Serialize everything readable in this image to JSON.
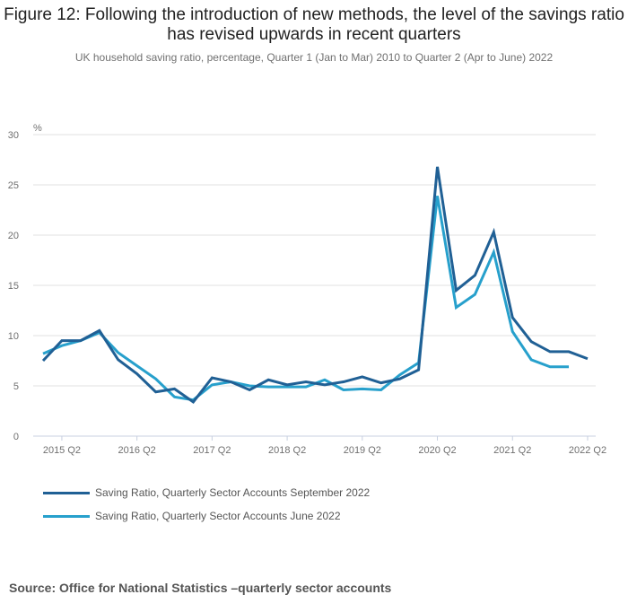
{
  "chart_data": {
    "type": "line",
    "title": "Figure 12: Following the introduction of new methods, the level of the savings ratio has revised upwards in recent quarters",
    "subtitle": "UK household saving ratio, percentage, Quarter 1 (Jan to Mar) 2010 to Quarter 2 (Apr to June) 2022",
    "ylabel": "%",
    "ylim": [
      0,
      30
    ],
    "yticks": [
      "0",
      "5",
      "10",
      "15",
      "20",
      "25",
      "30"
    ],
    "xticks": [
      "2015 Q2",
      "2016 Q2",
      "2017 Q2",
      "2018 Q2",
      "2019 Q2",
      "2020 Q2",
      "2021 Q2",
      "2022 Q2"
    ],
    "x": [
      "2015 Q1",
      "2015 Q2",
      "2015 Q3",
      "2015 Q4",
      "2016 Q1",
      "2016 Q2",
      "2016 Q3",
      "2016 Q4",
      "2017 Q1",
      "2017 Q2",
      "2017 Q3",
      "2017 Q4",
      "2018 Q1",
      "2018 Q2",
      "2018 Q3",
      "2018 Q4",
      "2019 Q1",
      "2019 Q2",
      "2019 Q3",
      "2019 Q4",
      "2020 Q1",
      "2020 Q2",
      "2020 Q3",
      "2020 Q4",
      "2021 Q1",
      "2021 Q2",
      "2021 Q3",
      "2021 Q4",
      "2022 Q1",
      "2022 Q2"
    ],
    "grid": true,
    "legend_position": "bottom",
    "series": [
      {
        "name": "Saving Ratio, Quarterly Sector Accounts September 2022",
        "color": "#206095",
        "values": [
          7.5,
          9.5,
          9.5,
          10.5,
          7.6,
          6.2,
          4.4,
          4.7,
          3.4,
          5.8,
          5.4,
          4.6,
          5.6,
          5.1,
          5.4,
          5.1,
          5.4,
          5.9,
          5.3,
          5.7,
          6.6,
          26.8,
          14.5,
          16.0,
          20.3,
          11.8,
          9.4,
          8.4,
          8.4,
          7.7
        ]
      },
      {
        "name": "Saving Ratio, Quarterly Sector Accounts June 2022",
        "color": "#27a0cc",
        "values": [
          8.2,
          9.0,
          9.5,
          10.3,
          8.3,
          7.0,
          5.7,
          3.9,
          3.6,
          5.1,
          5.4,
          5.0,
          4.9,
          4.9,
          4.9,
          5.6,
          4.6,
          4.7,
          4.6,
          6.1,
          7.3,
          23.9,
          12.8,
          14.1,
          18.3,
          10.4,
          7.6,
          6.9,
          6.9,
          null
        ]
      }
    ]
  },
  "source": "Source:  Office for National Statistics –quarterly sector accounts"
}
